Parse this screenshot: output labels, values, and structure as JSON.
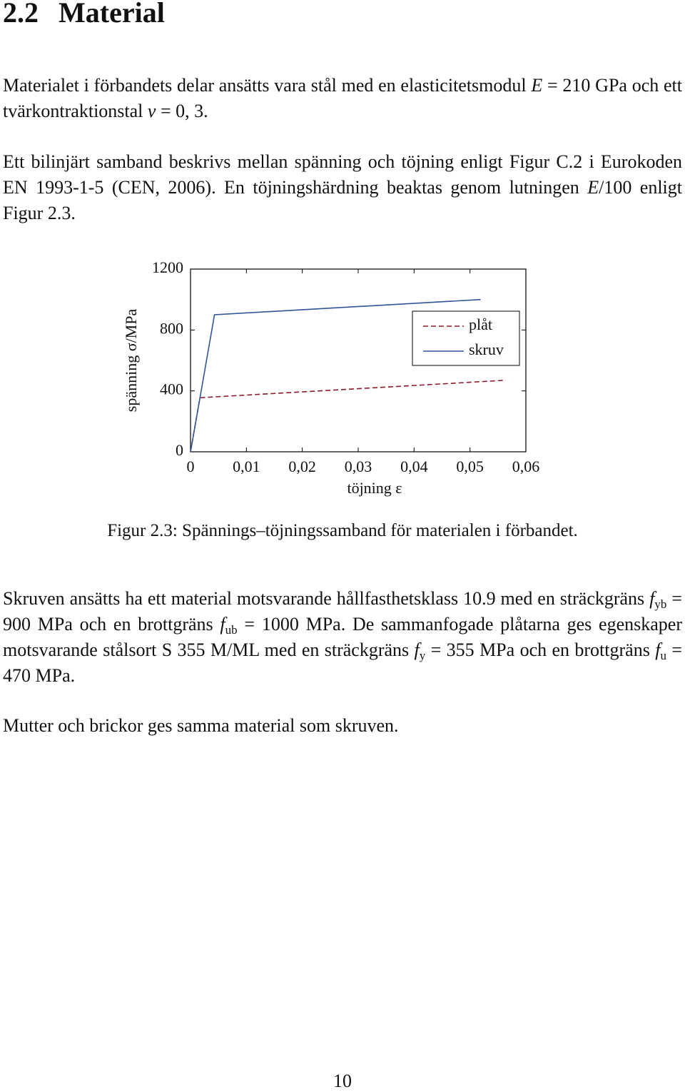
{
  "heading": {
    "number": "2.2",
    "title": "Material"
  },
  "paragraphs": [
    [
      "Materialet i förbandets delar ansätts vara stål med en elasticitetsmodul ",
      "E",
      " = 210 GPa och ett tvärkontraktionstal ",
      "ν",
      " = 0, 3."
    ],
    [
      "Ett bilinjärt samband beskrivs mellan spänning och töjning enligt Figur C.2 i Eurokoden EN 1993-1-5 (CEN, 2006). En töjningshärdning beaktas genom lutningen ",
      "E",
      "/100 enligt Figur 2.3."
    ],
    [
      "Skruven ansätts ha ett material motsvarande hållfasthetsklass 10.9 med en sträckgräns ",
      "f",
      "yb",
      " = 900 MPa och en brottgräns ",
      "f",
      "ub",
      " = 1000 MPa. De sammanfogade plåtarna ges egenskaper motsvarande stålsort S 355 M/ML med en sträckgräns ",
      "f",
      "y",
      " = 355 MPa och en brottgräns ",
      "f",
      "u",
      " = 470 MPa."
    ],
    [
      "Mutter och brickor ges samma material som skruven."
    ]
  ],
  "figure": {
    "caption": "Figur 2.3: Spännings–töjningssamband för materialen i förbandet."
  },
  "chart_data": {
    "type": "line",
    "xlabel": "töjning ε",
    "ylabel": "spänning σ/MPa",
    "xlim": [
      0,
      0.06
    ],
    "ylim": [
      0,
      1200
    ],
    "xticks": [
      0,
      {
        "value": 0.01,
        "label": "0,01"
      },
      {
        "value": 0.02,
        "label": "0,02"
      },
      {
        "value": 0.03,
        "label": "0,03"
      },
      {
        "value": 0.04,
        "label": "0,04"
      },
      {
        "value": 0.05,
        "label": "0,05"
      },
      {
        "value": 0.06,
        "label": "0,06"
      }
    ],
    "yticks": [
      0,
      400,
      800,
      1200
    ],
    "legend": "upper right",
    "series": [
      {
        "name": "plåt",
        "color": "#8b1a2b",
        "linestyle": "dashed",
        "x": [
          0,
          0.00169,
          0.0564
        ],
        "values": [
          0,
          355,
          470
        ]
      },
      {
        "name": "skruv",
        "color": "#2f5597",
        "linestyle": "solid",
        "x": [
          0,
          0.00429,
          0.0519
        ],
        "values": [
          0,
          900,
          1000
        ]
      }
    ]
  },
  "page_number": "10"
}
